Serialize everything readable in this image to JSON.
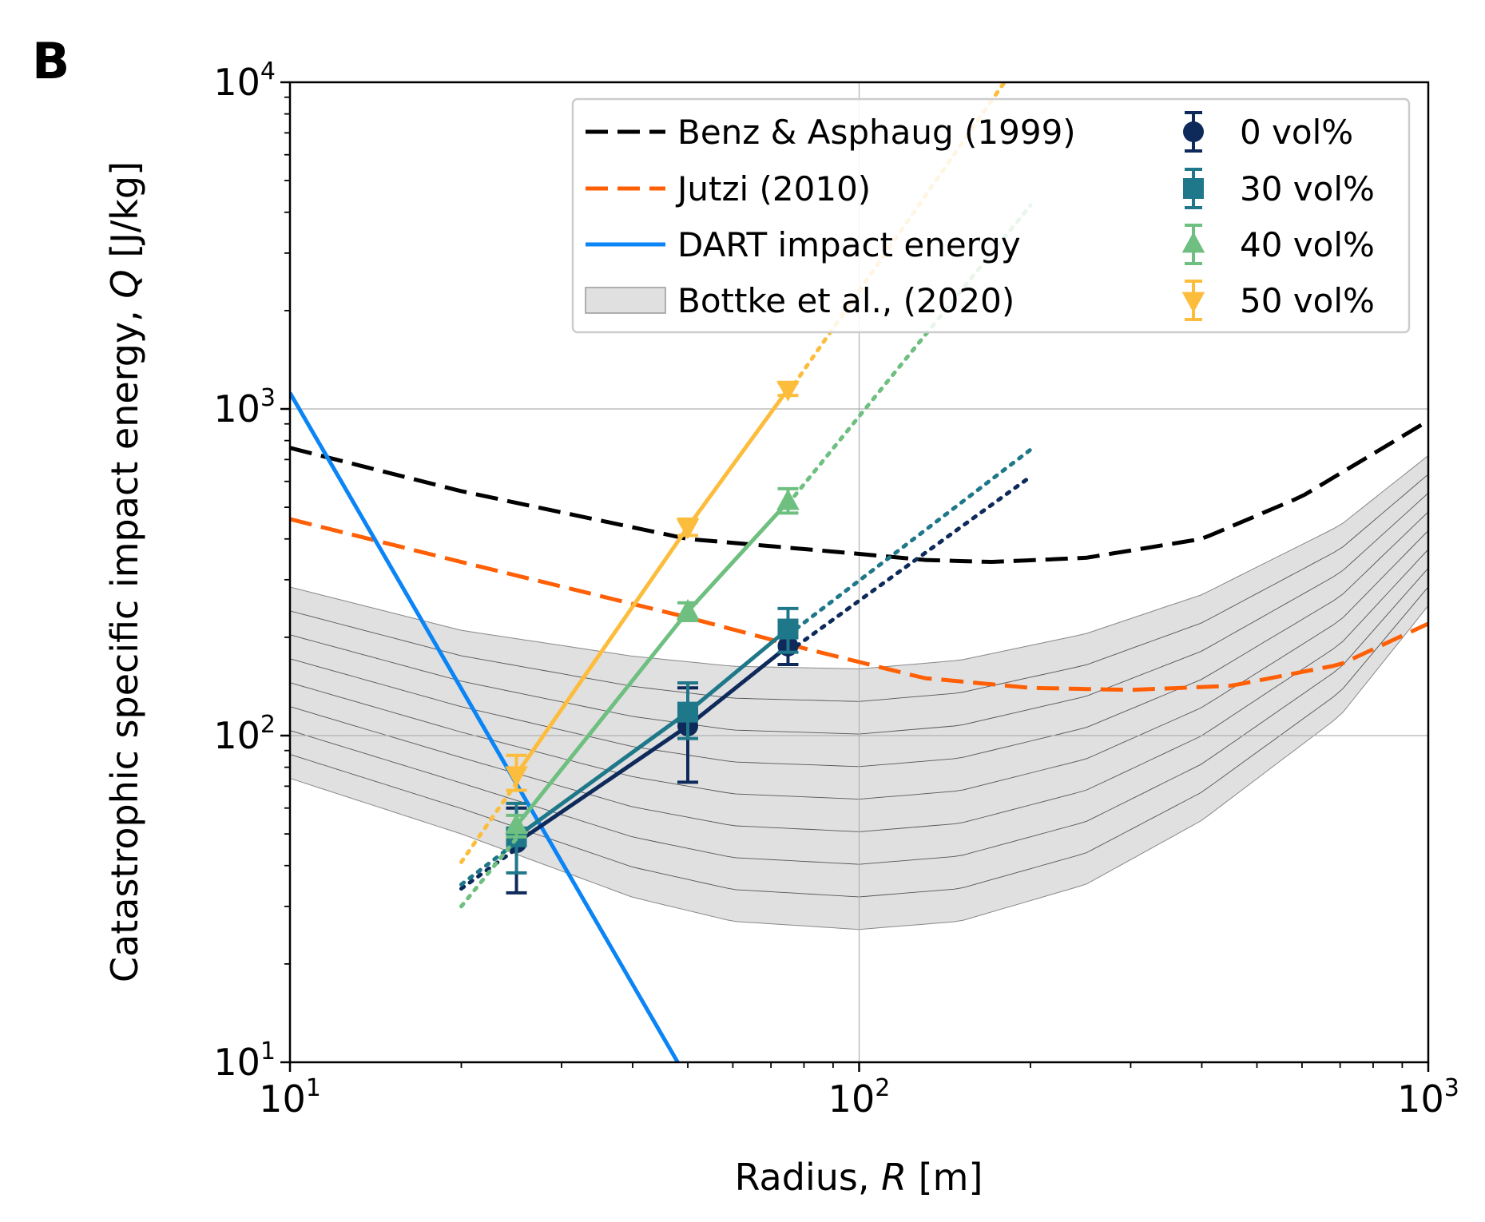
{
  "panel_label": "B",
  "chart_data": {
    "type": "line",
    "xscale": "log",
    "yscale": "log",
    "xlim": [
      10,
      1000
    ],
    "ylim": [
      10,
      10000
    ],
    "xlabel_prefix": "Radius, ",
    "xlabel_var": "R",
    "xlabel_unit": " [m]",
    "ylabel_prefix": "Catastrophic specific impact energy, ",
    "ylabel_var": "Q",
    "ylabel_unit": " [J/kg]",
    "x_ticks": [
      {
        "value": 10,
        "base": "10",
        "exp": "1"
      },
      {
        "value": 100,
        "base": "10",
        "exp": "2"
      },
      {
        "value": 1000,
        "base": "10",
        "exp": "3"
      }
    ],
    "y_ticks": [
      {
        "value": 10,
        "base": "10",
        "exp": "1"
      },
      {
        "value": 100,
        "base": "10",
        "exp": "2"
      },
      {
        "value": 1000,
        "base": "10",
        "exp": "3"
      },
      {
        "value": 10000,
        "base": "10",
        "exp": "4"
      }
    ],
    "grid": "major",
    "legend_placement": "top-right",
    "curves": [
      {
        "name": "Benz & Asphaug (1999)",
        "color": "#000000",
        "style": "dashed",
        "points": [
          [
            10,
            760
          ],
          [
            20,
            560
          ],
          [
            50,
            400
          ],
          [
            100,
            360
          ],
          [
            130,
            345
          ],
          [
            170,
            340
          ],
          [
            250,
            350
          ],
          [
            400,
            400
          ],
          [
            600,
            540
          ],
          [
            1000,
            920
          ]
        ]
      },
      {
        "name": "Jutzi (2010)",
        "color": "#ff5f05",
        "style": "dashed",
        "points": [
          [
            10,
            460
          ],
          [
            20,
            340
          ],
          [
            50,
            230
          ],
          [
            80,
            185
          ],
          [
            130,
            150
          ],
          [
            200,
            140
          ],
          [
            300,
            138
          ],
          [
            450,
            142
          ],
          [
            700,
            165
          ],
          [
            1000,
            220
          ]
        ]
      },
      {
        "name": "DART impact energy",
        "color": "#0b84f5",
        "style": "solid",
        "points": [
          [
            10,
            1120
          ],
          [
            48,
            10
          ]
        ]
      }
    ],
    "band": {
      "name": "Bottke et al., (2020)",
      "color": "#e0e0e0",
      "upper": [
        [
          10,
          285
        ],
        [
          20,
          210
        ],
        [
          40,
          175
        ],
        [
          60,
          163
        ],
        [
          100,
          160
        ],
        [
          150,
          170
        ],
        [
          250,
          205
        ],
        [
          400,
          270
        ],
        [
          700,
          440
        ],
        [
          1000,
          720
        ]
      ],
      "lower": [
        [
          10,
          74
        ],
        [
          20,
          50
        ],
        [
          40,
          32
        ],
        [
          60,
          27
        ],
        [
          100,
          25.5
        ],
        [
          150,
          27
        ],
        [
          250,
          35
        ],
        [
          400,
          55
        ],
        [
          700,
          115
        ],
        [
          1000,
          250
        ]
      ],
      "inner_lines": 7
    },
    "series": [
      {
        "name": "0 vol%",
        "color": "#0e2a5b",
        "marker": "circle",
        "x": [
          25,
          50,
          75
        ],
        "y": [
          47,
          107,
          188
        ],
        "err_low": [
          33,
          72,
          165
        ],
        "err_high": [
          60,
          140,
          215
        ],
        "extrap": [
          [
            20,
            34
          ],
          [
            200,
            620
          ]
        ]
      },
      {
        "name": "30 vol%",
        "color": "#1f7889",
        "marker": "square",
        "x": [
          25,
          50,
          75
        ],
        "y": [
          49,
          118,
          212
        ],
        "err_low": [
          38,
          98,
          180
        ],
        "err_high": [
          62,
          145,
          245
        ],
        "extrap": [
          [
            20,
            35
          ],
          [
            200,
            750
          ]
        ]
      },
      {
        "name": "40 vol%",
        "color": "#6ebf80",
        "marker": "triangle-up",
        "x": [
          25,
          50,
          75
        ],
        "y": [
          53,
          240,
          520
        ],
        "err_low": [
          49,
          225,
          480
        ],
        "err_high": [
          57,
          255,
          570
        ],
        "extrap": [
          [
            20,
            30
          ],
          [
            200,
            4200
          ]
        ]
      },
      {
        "name": "50 vol%",
        "color": "#fcbd3d",
        "marker": "triangle-down",
        "x": [
          25,
          50,
          75
        ],
        "y": [
          76,
          435,
          1150
        ],
        "err_low": [
          68,
          410,
          1100
        ],
        "err_high": [
          87,
          460,
          1200
        ],
        "extrap": [
          [
            20,
            41
          ],
          [
            180,
            10000
          ]
        ]
      }
    ]
  }
}
